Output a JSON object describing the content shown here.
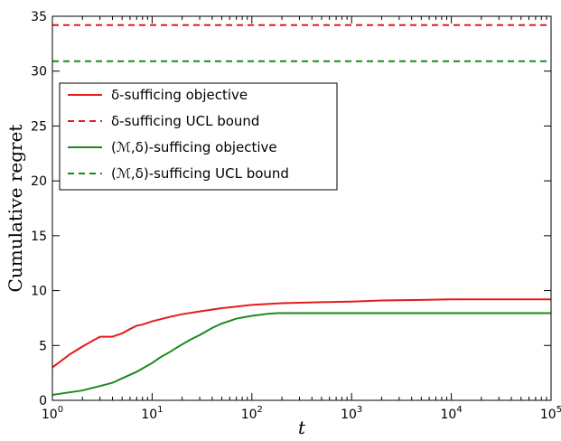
{
  "chart_data": {
    "type": "line",
    "xlabel": "t",
    "ylabel": "Cumulative regret",
    "xscale": "log",
    "xlim": [
      1,
      100000
    ],
    "ylim": [
      0,
      35
    ],
    "grid": false,
    "legend_position": "upper-left",
    "x_ticks": [
      {
        "value": 1,
        "base": "10",
        "exp": "0"
      },
      {
        "value": 10,
        "base": "10",
        "exp": "1"
      },
      {
        "value": 100,
        "base": "10",
        "exp": "2"
      },
      {
        "value": 1000,
        "base": "10",
        "exp": "3"
      },
      {
        "value": 10000,
        "base": "10",
        "exp": "4"
      },
      {
        "value": 100000,
        "base": "10",
        "exp": "5"
      }
    ],
    "y_ticks": [
      0,
      5,
      10,
      15,
      20,
      25,
      30,
      35
    ],
    "series": [
      {
        "name": "δ-sufficing objective",
        "color": "#e41a1c",
        "style": "solid",
        "x": [
          1,
          1.5,
          2,
          2.5,
          3,
          4,
          5,
          6,
          7,
          8,
          10,
          15,
          20,
          30,
          50,
          100,
          200,
          500,
          1000,
          2000,
          5000,
          10000,
          100000
        ],
        "y": [
          3.0,
          4.2,
          4.9,
          5.4,
          5.8,
          5.8,
          6.1,
          6.5,
          6.8,
          6.9,
          7.2,
          7.6,
          7.85,
          8.1,
          8.4,
          8.7,
          8.85,
          8.95,
          9.0,
          9.1,
          9.15,
          9.2,
          9.2
        ]
      },
      {
        "name": "δ-sufficing UCL bound",
        "color": "#e41a1c",
        "style": "dashed",
        "x": [
          1,
          100000
        ],
        "y": [
          34.2,
          34.2
        ]
      },
      {
        "name": "(ℳ,δ)-sufficing objective",
        "color": "#1b8a1b",
        "style": "solid",
        "x": [
          1,
          2,
          3,
          4,
          5,
          7,
          10,
          12,
          15,
          20,
          25,
          30,
          40,
          50,
          70,
          100,
          150,
          180,
          200,
          500,
          1000,
          10000,
          100000
        ],
        "y": [
          0.5,
          0.9,
          1.3,
          1.6,
          2.0,
          2.6,
          3.4,
          3.9,
          4.4,
          5.1,
          5.6,
          5.95,
          6.6,
          7.0,
          7.45,
          7.7,
          7.9,
          7.95,
          7.95,
          7.95,
          7.95,
          7.95,
          7.95
        ]
      },
      {
        "name": "(ℳ,δ)-sufficing UCL bound",
        "color": "#1b8a1b",
        "style": "dashed",
        "x": [
          1,
          100000
        ],
        "y": [
          30.9,
          30.9
        ]
      }
    ]
  }
}
